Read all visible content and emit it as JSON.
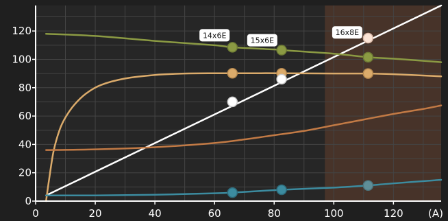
{
  "chart_data": {
    "type": "line",
    "xlabel": "(A)",
    "ylabel": "",
    "xlim": [
      0,
      136
    ],
    "ylim": [
      0,
      138
    ],
    "x_ticks": [
      0,
      20,
      40,
      60,
      80,
      100,
      120
    ],
    "y_ticks": [
      0,
      20,
      40,
      60,
      80,
      100,
      120
    ],
    "grid": true,
    "colors": {
      "background": "#1f1f1f",
      "plot": "#262626",
      "highlight_band": "#473329",
      "grid": "#444444",
      "axis": "#ffffff",
      "white_line": "#ffffff",
      "green": "#8b9a43",
      "yellow": "#dbab6b",
      "orange": "#c27a45",
      "teal": "#3c8ca0"
    },
    "highlight_band_x": [
      97,
      136
    ],
    "series": [
      {
        "color_key": "white_line",
        "x": [
          3.5,
          10,
          20,
          30,
          40,
          50,
          60,
          66,
          70,
          80,
          82.5,
          90,
          100,
          111.5,
          120,
          130,
          136
        ],
        "y": [
          4,
          12,
          24,
          36,
          48,
          60,
          72,
          70,
          77,
          88,
          86,
          97,
          109,
          115,
          131.5,
          143.5,
          138
        ]
      },
      {
        "color_key": "green",
        "x": [
          3.5,
          20,
          40,
          60,
          66,
          80,
          82.5,
          100,
          111.5,
          120,
          136
        ],
        "y": [
          118,
          116.5,
          113,
          110,
          108.5,
          107,
          106.5,
          104,
          101.5,
          100.5,
          98
        ]
      },
      {
        "color_key": "yellow",
        "x": [
          3.5,
          4.5,
          6,
          8,
          10,
          13,
          17,
          22,
          30,
          40,
          50,
          60,
          66,
          82.5,
          100,
          111.5,
          120,
          136
        ],
        "y": [
          0,
          15,
          35,
          50,
          59,
          68,
          76,
          82,
          86.5,
          89,
          90,
          90.2,
          90.2,
          90.2,
          90,
          90,
          89.5,
          88
        ]
      },
      {
        "color_key": "orange",
        "x": [
          3.5,
          20,
          40,
          60,
          70,
          80,
          90,
          100,
          110,
          120,
          130,
          136
        ],
        "y": [
          36,
          36.5,
          38,
          41,
          43.5,
          46.5,
          49.5,
          53.5,
          57.5,
          61.5,
          65,
          67.5
        ]
      },
      {
        "color_key": "teal",
        "x": [
          3.5,
          20,
          40,
          60,
          66,
          82.5,
          100,
          111.5,
          120,
          136
        ],
        "y": [
          4,
          4,
          4.5,
          5.5,
          6,
          8,
          9.5,
          11,
          12.5,
          15
        ]
      }
    ],
    "points": [
      {
        "x": 66,
        "y": 108.5,
        "color_key": "green",
        "fill": "#8b9a43",
        "stroke": "#6e7c35"
      },
      {
        "x": 82.5,
        "y": 106.5,
        "color_key": "green",
        "fill": "#8b9a43",
        "stroke": "#6e7c35"
      },
      {
        "x": 111.5,
        "y": 101.5,
        "color_key": "green",
        "fill": "#8b9a43",
        "stroke": "#6e7c35"
      },
      {
        "x": 66,
        "y": 90.2,
        "color_key": "yellow",
        "fill": "#dbab6b",
        "stroke": "#b88a50"
      },
      {
        "x": 82.5,
        "y": 90.2,
        "color_key": "yellow",
        "fill": "#dbab6b",
        "stroke": "#b88a50"
      },
      {
        "x": 111.5,
        "y": 90.0,
        "color_key": "yellow",
        "fill": "#dbab6b",
        "stroke": "#b88a50"
      },
      {
        "x": 66,
        "y": 70,
        "color_key": "white_line",
        "fill": "#ffffff",
        "stroke": "#cccccc"
      },
      {
        "x": 82.5,
        "y": 86,
        "color_key": "white_line",
        "fill": "#ffffff",
        "stroke": "#cccccc"
      },
      {
        "x": 111.5,
        "y": 115,
        "color_key": "white_line",
        "fill": "#fbe4d6",
        "stroke": "#d9b9a8"
      },
      {
        "x": 66,
        "y": 6,
        "color_key": "teal",
        "fill": "#3c8ca0",
        "stroke": "#2d6c7c"
      },
      {
        "x": 82.5,
        "y": 8,
        "color_key": "teal",
        "fill": "#3c8ca0",
        "stroke": "#2d6c7c"
      },
      {
        "x": 111.5,
        "y": 11,
        "color_key": "teal",
        "fill": "#5f8e98",
        "stroke": "#4d7780"
      }
    ],
    "labels": [
      {
        "text": "14x6E",
        "x": 60,
        "y": 117
      },
      {
        "text": "15x6E",
        "x": 76,
        "y": 113.5
      },
      {
        "text": "16x8E",
        "x": 104.5,
        "y": 119
      }
    ]
  }
}
